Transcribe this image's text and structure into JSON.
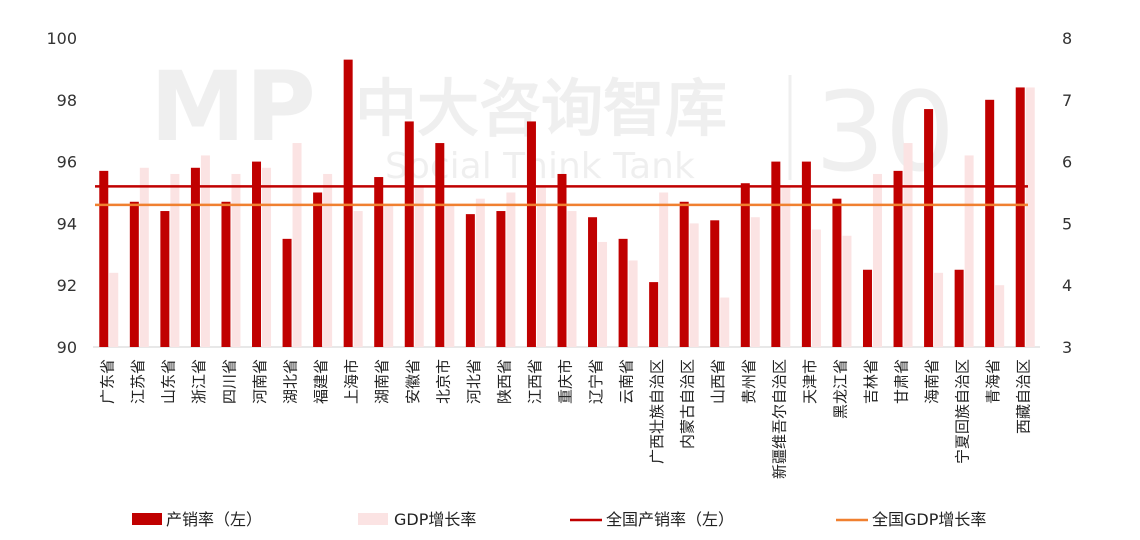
{
  "chart_data": {
    "type": "bar",
    "categories": [
      "广东省",
      "江苏省",
      "山东省",
      "浙江省",
      "四川省",
      "河南省",
      "湖北省",
      "福建省",
      "上海市",
      "湖南省",
      "安徽省",
      "北京市",
      "河北省",
      "陕西省",
      "江西省",
      "重庆市",
      "辽宁省",
      "云南省",
      "广西壮族自治区",
      "内蒙古自治区",
      "山西省",
      "贵州省",
      "新疆维吾尔自治区",
      "天津市",
      "黑龙江省",
      "吉林省",
      "甘肃省",
      "海南省",
      "宁夏回族自治区",
      "青海省",
      "西藏自治区"
    ],
    "series": [
      {
        "name": "产销率（左）",
        "axis": "left",
        "color": "#c00000",
        "values": [
          95.7,
          94.7,
          94.4,
          95.8,
          94.7,
          96.0,
          93.5,
          95.0,
          99.3,
          95.5,
          97.3,
          96.6,
          94.3,
          94.4,
          97.3,
          95.6,
          94.2,
          93.5,
          92.1,
          94.7,
          94.1,
          95.3,
          96.0,
          96.0,
          94.8,
          92.5,
          95.7,
          97.7,
          92.5,
          98.0,
          98.4
        ]
      },
      {
        "name": "GDP增长率",
        "axis": "right",
        "color": "#fbe3e3",
        "values": [
          4.2,
          5.9,
          5.8,
          6.1,
          5.8,
          5.9,
          6.3,
          5.8,
          5.2,
          5.3,
          5.6,
          5.3,
          5.4,
          5.5,
          5.6,
          5.2,
          4.7,
          4.4,
          5.5,
          5.0,
          3.8,
          5.1,
          5.6,
          4.9,
          4.8,
          5.8,
          6.3,
          4.2,
          6.1,
          4.0,
          7.2
        ]
      }
    ],
    "reference_lines": [
      {
        "name": "全国产销率（左）",
        "axis": "left",
        "value": 95.2,
        "color": "#c00000"
      },
      {
        "name": "全国GDP增长率",
        "axis": "right",
        "value": 5.3,
        "color": "#f08030"
      }
    ],
    "ylim_left": [
      90,
      100
    ],
    "yticks_left": [
      "90",
      "92",
      "94",
      "96",
      "98",
      "100"
    ],
    "ylim_right": [
      3,
      8
    ],
    "yticks_right": [
      "3",
      "4",
      "5",
      "6",
      "7",
      "8"
    ],
    "legend_position": "bottom"
  },
  "watermark": {
    "logo_text": "MP",
    "name": "中大咨询智库",
    "subtitle": "Social Think Tank",
    "badge": "30"
  }
}
